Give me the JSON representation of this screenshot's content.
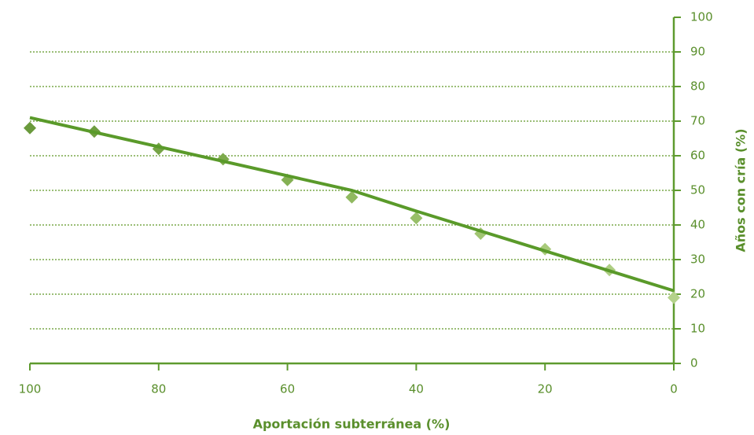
{
  "chart_data": {
    "type": "scatter",
    "xlabel": "Aportación subterránea (%)",
    "ylabel": "Años con cría (%)",
    "xlim": [
      100,
      0
    ],
    "xticks": [
      100,
      80,
      60,
      40,
      20,
      0
    ],
    "ylim": [
      0,
      100
    ],
    "yticks": [
      0,
      10,
      20,
      30,
      40,
      50,
      60,
      70,
      80,
      90,
      100
    ],
    "grid": true,
    "axis_color": "#5e9a2e",
    "series": [
      {
        "type": "scatter",
        "x": [
          100,
          90,
          80,
          70,
          60,
          50,
          40,
          30,
          20,
          10,
          0
        ],
        "values": [
          68,
          67,
          62,
          59,
          53,
          48,
          42,
          37.5,
          33,
          27,
          19
        ],
        "colors": [
          "#6a9a3c",
          "#6f9e40",
          "#76a446",
          "#7daa4c",
          "#84b053",
          "#90b960",
          "#98bf69",
          "#a1c572",
          "#a8ca7b",
          "#aece83",
          "#b4d28b"
        ]
      },
      {
        "type": "line",
        "color": "#5a9a2a",
        "x": [
          100,
          50,
          40,
          0
        ],
        "values": [
          71,
          50,
          44,
          21
        ]
      }
    ]
  }
}
